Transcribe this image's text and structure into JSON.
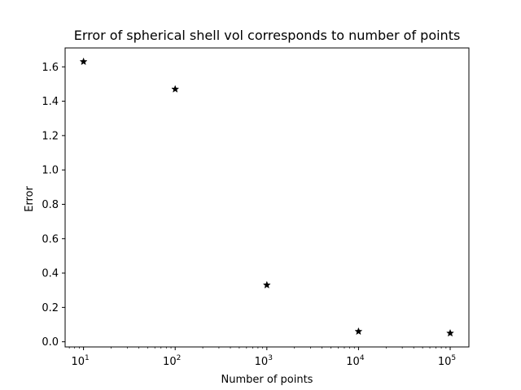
{
  "chart_data": {
    "type": "scatter",
    "title": "Error of spherical shell vol corresponds to number of points",
    "xlabel": "Number of points",
    "ylabel": "Error",
    "x_scale": "log",
    "x": [
      10,
      100,
      1000,
      10000,
      100000
    ],
    "y": [
      1.63,
      1.47,
      0.33,
      0.06,
      0.05
    ],
    "xlim": [
      6.3,
      160000
    ],
    "ylim": [
      -0.03,
      1.71
    ],
    "x_ticks": [
      {
        "value": 10,
        "base": "10",
        "exp": "1"
      },
      {
        "value": 100,
        "base": "10",
        "exp": "2"
      },
      {
        "value": 1000,
        "base": "10",
        "exp": "3"
      },
      {
        "value": 10000,
        "base": "10",
        "exp": "4"
      },
      {
        "value": 100000,
        "base": "10",
        "exp": "5"
      }
    ],
    "y_ticks": [
      {
        "value": 0.0,
        "label": "0.0"
      },
      {
        "value": 0.2,
        "label": "0.2"
      },
      {
        "value": 0.4,
        "label": "0.4"
      },
      {
        "value": 0.6,
        "label": "0.6"
      },
      {
        "value": 0.8,
        "label": "0.8"
      },
      {
        "value": 1.0,
        "label": "1.0"
      },
      {
        "value": 1.2,
        "label": "1.2"
      },
      {
        "value": 1.4,
        "label": "1.4"
      },
      {
        "value": 1.6,
        "label": "1.6"
      }
    ],
    "marker": "star",
    "marker_color": "#000000",
    "grid": false
  }
}
